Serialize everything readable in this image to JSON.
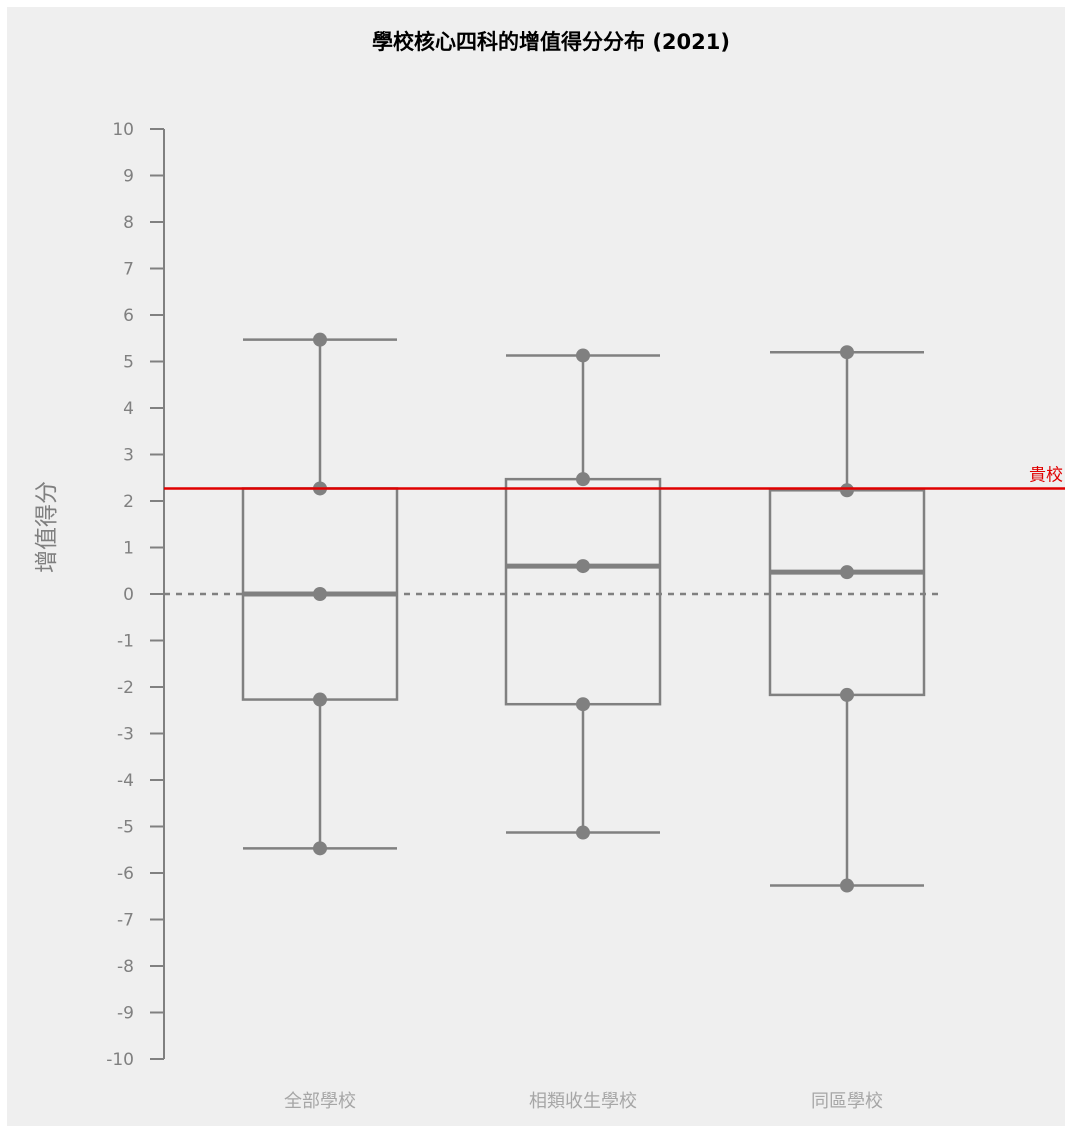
{
  "chart_data": {
    "type": "box",
    "title": "學校核心四科的增值得分分布 (2021)",
    "ylabel": "增值得分",
    "xlabel": "",
    "ylim": [
      -10,
      10
    ],
    "yticks": [
      10,
      9,
      8,
      7,
      6,
      5,
      4,
      3,
      2,
      1,
      0,
      -1,
      -2,
      -3,
      -4,
      -5,
      -6,
      -7,
      -8,
      -9,
      -10
    ],
    "categories": [
      "全部學校",
      "相類收生學校",
      "同區學校"
    ],
    "boxes": [
      {
        "category": "全部學校",
        "min": -5.47,
        "q1": -2.27,
        "median": 0.0,
        "q3": 2.27,
        "max": 5.47
      },
      {
        "category": "相類收生學校",
        "min": -5.13,
        "q1": -2.37,
        "median": 0.6,
        "q3": 2.47,
        "max": 5.13
      },
      {
        "category": "同區學校",
        "min": -6.27,
        "q1": -2.17,
        "median": 0.47,
        "q3": 2.23,
        "max": 5.2
      }
    ],
    "reference_line": {
      "label": "貴校",
      "value": 2.27,
      "color": "#e00000"
    },
    "zero_line": {
      "value": 0,
      "style": "dashed"
    },
    "grid": false,
    "colors": {
      "box": "#808080",
      "background": "#efefef",
      "reference": "#e00000"
    }
  }
}
